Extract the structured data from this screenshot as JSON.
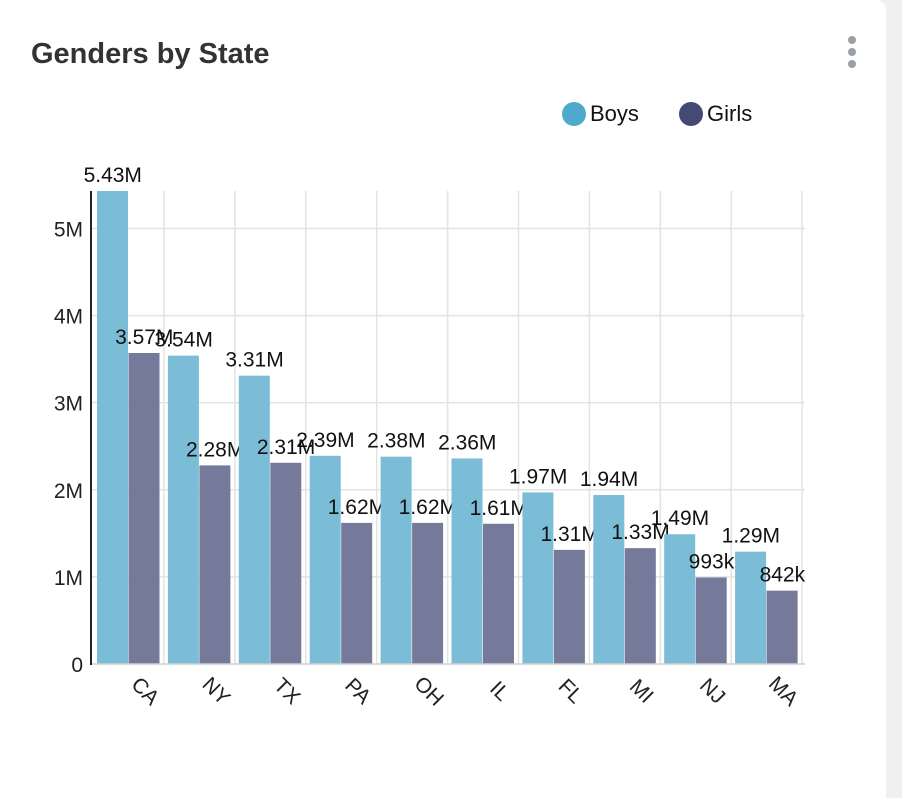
{
  "card": {
    "title": "Genders by State",
    "menu_icon": "kebab-menu-icon"
  },
  "legend": [
    {
      "label": "Boys",
      "color": "#4fa9cc"
    },
    {
      "label": "Girls",
      "color": "#454a75"
    }
  ],
  "chart_data": {
    "type": "bar",
    "categories": [
      "CA",
      "NY",
      "TX",
      "PA",
      "OH",
      "IL",
      "FL",
      "MI",
      "NJ",
      "MA"
    ],
    "series": [
      {
        "name": "Boys",
        "color": "#7bbcd6",
        "values": [
          5430000,
          3540000,
          3310000,
          2390000,
          2380000,
          2360000,
          1970000,
          1940000,
          1490000,
          1290000
        ],
        "labels": [
          "5.43M",
          "3.54M",
          "3.31M",
          "2.39M",
          "2.38M",
          "2.36M",
          "1.97M",
          "1.94M",
          "1.49M",
          "1.29M"
        ]
      },
      {
        "name": "Girls",
        "color": "#767a9a",
        "values": [
          3570000,
          2280000,
          2310000,
          1620000,
          1620000,
          1610000,
          1310000,
          1330000,
          993000,
          842000
        ],
        "labels": [
          "3.57M",
          "2.28M",
          "2.31M",
          "1.62M",
          "1.62M",
          "1.61M",
          "1.31M",
          "1.33M",
          "993k",
          "842k"
        ]
      }
    ],
    "yticks": [
      {
        "value": 0,
        "label": "0"
      },
      {
        "value": 1000000,
        "label": "1M"
      },
      {
        "value": 2000000,
        "label": "2M"
      },
      {
        "value": 3000000,
        "label": "3M"
      },
      {
        "value": 4000000,
        "label": "4M"
      },
      {
        "value": 5000000,
        "label": "5M"
      }
    ],
    "ylim": [
      0,
      5430000
    ],
    "grid": true,
    "legend_position": "top-right",
    "xlabel": "",
    "ylabel": ""
  }
}
